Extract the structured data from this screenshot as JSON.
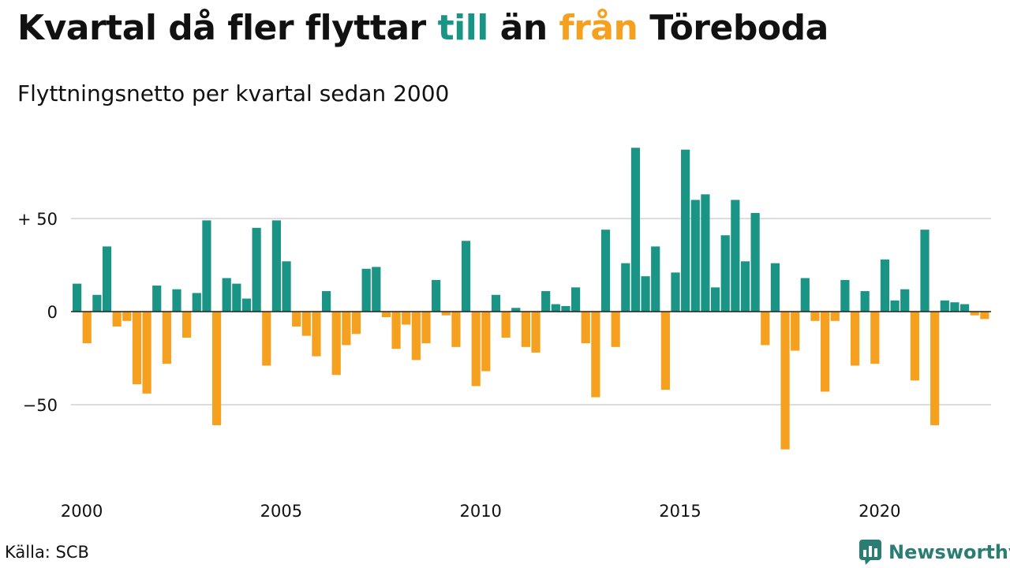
{
  "header": {
    "title_parts": [
      "Kvartal då fler flyttar ",
      "till",
      " än ",
      "från",
      " Töreboda"
    ],
    "subtitle": "Flyttningsnetto per kvartal sedan 2000"
  },
  "footer": {
    "source": "Källa: SCB",
    "brand": "Newsworthy"
  },
  "colors": {
    "positive": "#1a9585",
    "negative": "#f5a01e",
    "grid": "#dddddd",
    "zero_line": "#222222",
    "text": "#111111",
    "brand": "#2a7d72"
  },
  "chart_data": {
    "type": "bar",
    "title": "Kvartal då fler flyttar till än från Töreboda",
    "subtitle": "Flyttningsnetto per kvartal sedan 2000",
    "start_year": 2000,
    "periods_per_year": 4,
    "series": [
      {
        "values": [
          15,
          -17,
          9,
          35,
          -8,
          -5,
          -39,
          -44,
          14,
          -28,
          12,
          -14,
          10,
          49,
          -61,
          18,
          15,
          7,
          45,
          -29,
          49,
          27,
          -8,
          -13,
          -24,
          11,
          -34,
          -18,
          -12,
          23,
          24,
          -3,
          -20,
          -7,
          -26,
          -17,
          17,
          -2,
          -19,
          38,
          -40,
          -32,
          9,
          -14,
          2,
          -19,
          -22,
          11,
          4,
          3,
          13,
          -17,
          -46,
          44,
          -19,
          26,
          88,
          19,
          35,
          -42,
          21,
          87,
          60,
          63,
          13,
          41,
          60,
          27,
          53,
          -18,
          26,
          -74,
          -21,
          18,
          -5,
          -43,
          -5,
          17,
          -29,
          11,
          -28,
          28,
          6,
          12,
          -37,
          44,
          -61,
          6,
          5,
          4,
          -2,
          -4
        ]
      }
    ],
    "ylim": [
      -80,
      100
    ],
    "yticks": [
      50,
      0,
      -50
    ],
    "ytick_labels": [
      "+ 50",
      "0",
      "−50"
    ],
    "xticks": [
      2000,
      2005,
      2010,
      2015,
      2020
    ],
    "xtick_labels": [
      "2000",
      "2005",
      "2010",
      "2015",
      "2020"
    ],
    "xlabel": "",
    "ylabel": "",
    "grid": true,
    "legend": "none"
  }
}
